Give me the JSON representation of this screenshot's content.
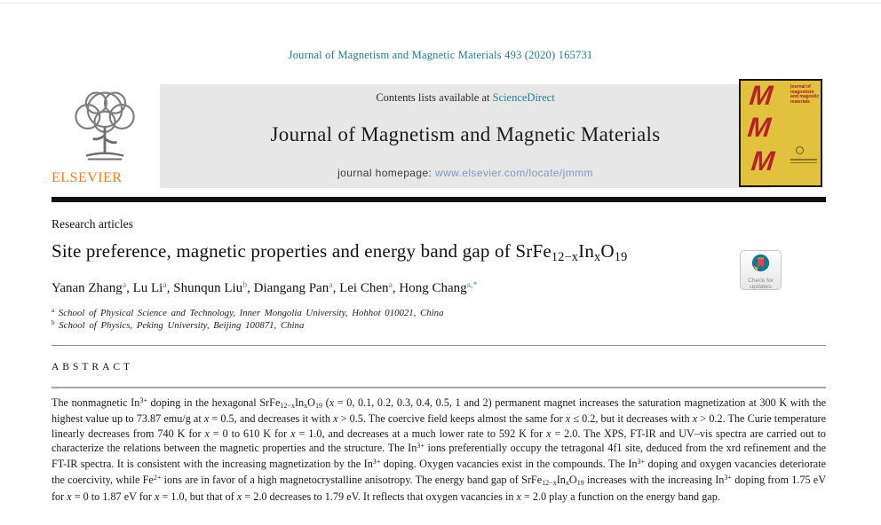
{
  "page": {
    "citation": "Journal of Magnetism and Magnetic Materials 493 (2020) 165731"
  },
  "header": {
    "contents_prefix": "Contents lists available at ",
    "sciencedirect_label": "ScienceDirect",
    "journal_title": "Journal of Magnetism and Magnetic Materials",
    "homepage_prefix": "journal homepage: ",
    "homepage_url": "www.elsevier.com/locate/jmmm",
    "elsevier_wordmark": "ELSEVIER",
    "cover": {
      "masthead": "journal of magnetism and magnetic materials",
      "letters": [
        "M",
        "M",
        "M"
      ]
    }
  },
  "article": {
    "section_label": "Research articles",
    "title_rich": [
      "Site preference, magnetic properties and energy band gap of SrFe",
      {
        "s": "sub",
        "t": "12−x"
      },
      "In",
      {
        "s": "sub",
        "t": "x"
      },
      "O",
      {
        "s": "sub",
        "t": "19"
      }
    ],
    "authors_rich": [
      "Yanan Zhang",
      {
        "s": "sup",
        "t": "a",
        "c": "aff"
      },
      ", Lu Li",
      {
        "s": "sup",
        "t": "a",
        "c": "aff"
      },
      ", Shunqun Liu",
      {
        "s": "sup",
        "t": "b",
        "c": "aff"
      },
      ", Diangang Pan",
      {
        "s": "sup",
        "t": "a",
        "c": "aff"
      },
      ", Lei Chen",
      {
        "s": "sup",
        "t": "a",
        "c": "aff"
      },
      ", Hong Chang",
      {
        "s": "sup",
        "t": "a,*",
        "c": "aff"
      }
    ],
    "affiliation_a_rich": [
      {
        "s": "sup",
        "t": "a"
      },
      " School of Physical Science and Technology, Inner Mongolia University, Hohhot 010021, China"
    ],
    "affiliation_b_rich": [
      {
        "s": "sup",
        "t": "b"
      },
      " School of Physics, Peking University, Beijing 100871, China"
    ],
    "crossmark": {
      "line1": "Check for",
      "line2": "updates"
    }
  },
  "abstract": {
    "heading": "ABSTRACT",
    "body_rich": [
      "The nonmagnetic In",
      {
        "s": "sup",
        "t": "3+"
      },
      " doping in the hexagonal SrFe",
      {
        "s": "sub",
        "t": "12−x"
      },
      "In",
      {
        "s": "sub",
        "t": "x"
      },
      "O",
      {
        "s": "sub",
        "t": "19"
      },
      " (",
      {
        "s": "i",
        "t": "x"
      },
      " = 0, 0.1, 0.2, 0.3, 0.4, 0.5, 1 and 2) permanent magnet increases the saturation magnetization at 300 K with the highest value up to 73.87 emu/g at ",
      {
        "s": "i",
        "t": "x"
      },
      " = 0.5, and decreases it with ",
      {
        "s": "i",
        "t": "x"
      },
      " > 0.5. The coercive field keeps almost the same for ",
      {
        "s": "i",
        "t": "x"
      },
      " ≤ 0.2, but it decreases with ",
      {
        "s": "i",
        "t": "x"
      },
      " > 0.2. The Curie temperature linearly decreases from 740 K for ",
      {
        "s": "i",
        "t": "x"
      },
      " = 0 to 610 K for ",
      {
        "s": "i",
        "t": "x"
      },
      " = 1.0, and decreases at a much lower rate to 592 K for ",
      {
        "s": "i",
        "t": "x"
      },
      " = 2.0. The XPS, FT-IR and UV–vis spectra are carried out to characterize the relations between the magnetic properties and the structure. The In",
      {
        "s": "sup",
        "t": "3+"
      },
      " ions preferentially occupy the tetragonal 4f1 site, deduced from the xrd refinement and the FT-IR spectra. It is consistent with the increasing magnetization by the In",
      {
        "s": "sup",
        "t": "3+"
      },
      " doping. Oxygen vacancies exist in the compounds. The In",
      {
        "s": "sup",
        "t": "3+"
      },
      " doping and oxygen vacancies deteriorate the coercivity, while Fe",
      {
        "s": "sup",
        "t": "2+"
      },
      " ions are in favor of a high magnetocrystalline anisotropy. The energy band gap of SrFe",
      {
        "s": "sub",
        "t": "12−x"
      },
      "In",
      {
        "s": "sub",
        "t": "x"
      },
      "O",
      {
        "s": "sub",
        "t": "19"
      },
      " increases with the increasing In",
      {
        "s": "sup",
        "t": "3+"
      },
      " doping from 1.75 eV for ",
      {
        "s": "i",
        "t": "x"
      },
      " = 0 to 1.87 eV for ",
      {
        "s": "i",
        "t": "x"
      },
      " = 1.0, but that of ",
      {
        "s": "i",
        "t": "x"
      },
      " = 2.0 decreases to 1.79 eV. It reflects that oxygen vacancies in ",
      {
        "s": "i",
        "t": "x"
      },
      " = 2.0 play a function on the energy band gap."
    ]
  },
  "colors": {
    "teal_link": "#2d7f93",
    "homepage_link": "#7a9cbd",
    "elsevier_orange": "#ef7f1a",
    "cover_yellow": "#e2c23d",
    "cover_red": "#b5232a"
  }
}
